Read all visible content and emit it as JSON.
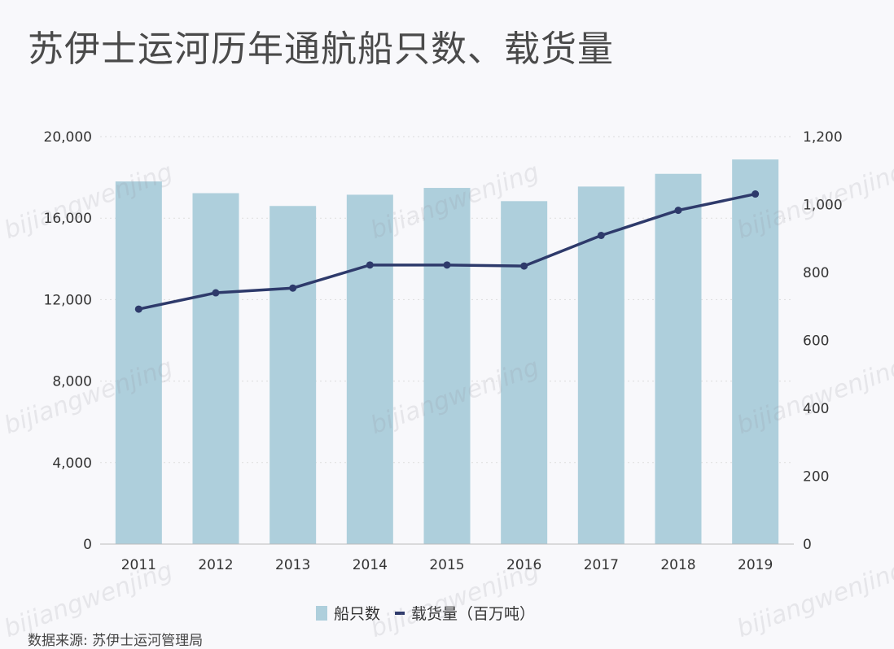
{
  "chart_data": {
    "type": "bar+line",
    "title": "苏伊士运河历年通航船只数、载货量",
    "categories": [
      "2011",
      "2012",
      "2013",
      "2014",
      "2015",
      "2016",
      "2017",
      "2018",
      "2019"
    ],
    "series": [
      {
        "name": "船只数",
        "type": "bar",
        "axis": "left",
        "color": "#aecfdc",
        "values": [
          17799,
          17225,
          16596,
          17148,
          17483,
          16833,
          17550,
          18174,
          18880
        ]
      },
      {
        "name": "载货量（百万吨）",
        "type": "line",
        "axis": "right",
        "color": "#2e3a6b",
        "values": [
          692,
          740,
          754,
          822,
          822,
          819,
          909,
          983,
          1031
        ]
      }
    ],
    "y_left": {
      "lim": [
        0,
        20000
      ],
      "ticks": [
        "0",
        "4,000",
        "8,000",
        "12,000",
        "16,000",
        "20,000"
      ]
    },
    "y_right": {
      "lim": [
        0,
        1200
      ],
      "ticks": [
        "0",
        "200",
        "400",
        "600",
        "800",
        "1,000",
        "1,200"
      ]
    },
    "grid": "dotted horizontal",
    "legend": "bottom-center"
  },
  "source": "数据来源: 苏伊士运河管理局",
  "watermark": "bijiangwenjing"
}
